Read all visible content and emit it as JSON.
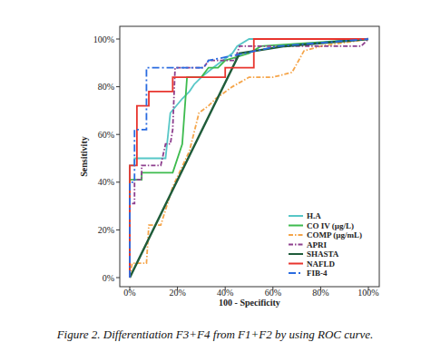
{
  "chart_data": {
    "type": "line",
    "title": "Figure 2. Differentiation F3+F4 from F1+F2 by using ROC curve.",
    "x_label": "100 - Specificity",
    "y_label": "Sensitivity",
    "xlim": [
      0,
      100
    ],
    "ylim": [
      0,
      100
    ],
    "xticks": [
      {
        "value": 0,
        "label": "0%"
      },
      {
        "value": 20,
        "label": "20%"
      },
      {
        "value": 40,
        "label": "40%"
      },
      {
        "value": 60,
        "label": "60%"
      },
      {
        "value": 80,
        "label": "80%"
      },
      {
        "value": 100,
        "label": "100%"
      }
    ],
    "yticks": [
      {
        "value": 0,
        "label": "0%"
      },
      {
        "value": 20,
        "label": "20%"
      },
      {
        "value": 40,
        "label": "40%"
      },
      {
        "value": 60,
        "label": "60%"
      },
      {
        "value": 80,
        "label": "80%"
      },
      {
        "value": 100,
        "label": "100%"
      }
    ],
    "grid": false,
    "legend": "lower right",
    "series": [
      {
        "name": "H.A",
        "color": "#57c7c7",
        "line_style": "solid",
        "x": [
          0,
          0,
          2,
          2,
          15,
          17,
          22,
          25,
          27,
          30,
          35,
          43,
          45,
          50,
          100
        ],
        "values": [
          0,
          47,
          47,
          50,
          50,
          69,
          75,
          78,
          81,
          84,
          88,
          94,
          97,
          100,
          100
        ]
      },
      {
        "name": "CO IV (µg/L)",
        "color": "#3dbb4e",
        "line_style": "solid",
        "x": [
          0,
          0,
          5,
          5,
          18,
          22,
          24,
          30,
          33,
          37,
          40,
          50,
          55,
          100
        ],
        "values": [
          0,
          41,
          41,
          44,
          44,
          56,
          84,
          84,
          88,
          88,
          91,
          94,
          97,
          100
        ]
      },
      {
        "name": "COMP (µg/mL)",
        "color": "#f5a54a",
        "line_style": "dashdot",
        "x": [
          0,
          1,
          7,
          8,
          13,
          18,
          25,
          29,
          33,
          36,
          43,
          50,
          60,
          68,
          73,
          80,
          100
        ],
        "values": [
          0,
          6,
          6,
          22,
          22,
          38,
          53,
          69,
          72,
          75,
          80,
          84,
          84,
          86,
          95,
          97,
          100
        ]
      },
      {
        "name": "APRI",
        "color": "#8e3f8e",
        "line_style": "dashdot",
        "x": [
          0,
          0,
          2,
          2,
          5,
          5,
          13,
          15,
          17,
          18,
          19,
          31,
          33,
          44,
          46,
          97,
          100
        ],
        "values": [
          0,
          31,
          31,
          41,
          41,
          47,
          47,
          56,
          56,
          62,
          88,
          88,
          91,
          91,
          97,
          97,
          100
        ]
      },
      {
        "name": "SHASTA",
        "color": "#1f5c3a",
        "line_style": "solid",
        "x": [
          0,
          46,
          65,
          100
        ],
        "values": [
          0,
          94,
          97,
          100
        ]
      },
      {
        "name": "NAFLD",
        "color": "#e8352e",
        "line_style": "solid",
        "x": [
          0,
          0,
          3,
          3,
          8,
          8,
          18,
          18,
          40,
          40,
          52,
          52,
          100
        ],
        "values": [
          0,
          47,
          47,
          72,
          72,
          78,
          78,
          84,
          84,
          88,
          88,
          100,
          100
        ]
      },
      {
        "name": "FIB-4",
        "color": "#2a6be0",
        "line_style": "dashed",
        "x": [
          0,
          0,
          2,
          2,
          7,
          7,
          19,
          31,
          33,
          48,
          62,
          100
        ],
        "values": [
          0,
          40,
          40,
          62,
          62,
          88,
          88,
          88,
          91,
          94,
          97,
          100
        ]
      }
    ]
  }
}
